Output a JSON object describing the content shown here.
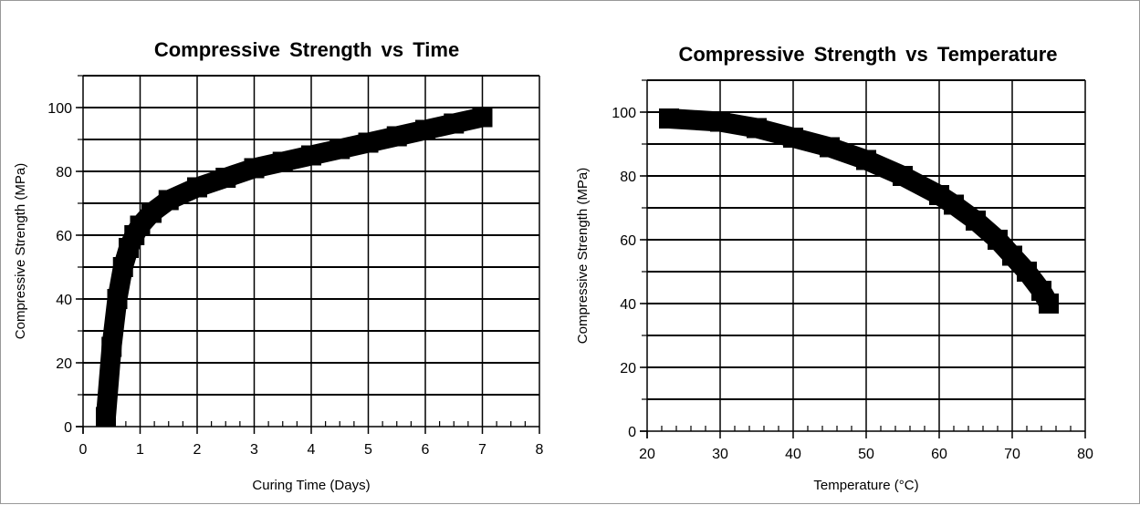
{
  "chart_data": [
    {
      "type": "line",
      "title": "Compressive Strength vs Time",
      "xlabel": "Curing Time (Days)",
      "ylabel": "Compressive Strength (MPa)",
      "xlim": [
        0,
        8
      ],
      "ylim": [
        0,
        110
      ],
      "x_ticks": [
        0,
        1,
        2,
        3,
        4,
        5,
        6,
        7,
        8
      ],
      "y_ticks": [
        0,
        20,
        40,
        60,
        80,
        100
      ],
      "grid": true,
      "line_color": "#000000",
      "series": [
        {
          "x": [
            0.4,
            0.5,
            0.6,
            0.7,
            0.8,
            0.9,
            1.0,
            1.2,
            1.5,
            2.0,
            2.5,
            3.0,
            3.5,
            4.0,
            4.5,
            5.0,
            5.5,
            6.0,
            6.5,
            7.0
          ],
          "values": [
            3,
            25,
            40,
            50,
            56,
            60,
            63,
            67,
            71,
            75,
            78,
            81,
            83,
            85,
            87,
            89,
            91,
            93,
            95,
            97
          ]
        }
      ]
    },
    {
      "type": "line",
      "title": "Compressive Strength vs Temperature",
      "xlabel": "Temperature (°C)",
      "ylabel": "Compressive Strength (MPa)",
      "xlim": [
        20,
        80
      ],
      "ylim": [
        0,
        110
      ],
      "x_ticks": [
        20,
        30,
        40,
        50,
        60,
        70,
        80
      ],
      "y_ticks": [
        0,
        20,
        40,
        60,
        80,
        100
      ],
      "grid": true,
      "line_color": "#000000",
      "series": [
        {
          "x": [
            23,
            30,
            35,
            40,
            45,
            50,
            55,
            60,
            62,
            65,
            68,
            70,
            72,
            74,
            75
          ],
          "values": [
            98,
            97,
            95,
            92,
            89,
            85,
            80,
            74,
            71,
            66,
            60,
            55,
            50,
            44,
            40
          ]
        }
      ]
    }
  ]
}
